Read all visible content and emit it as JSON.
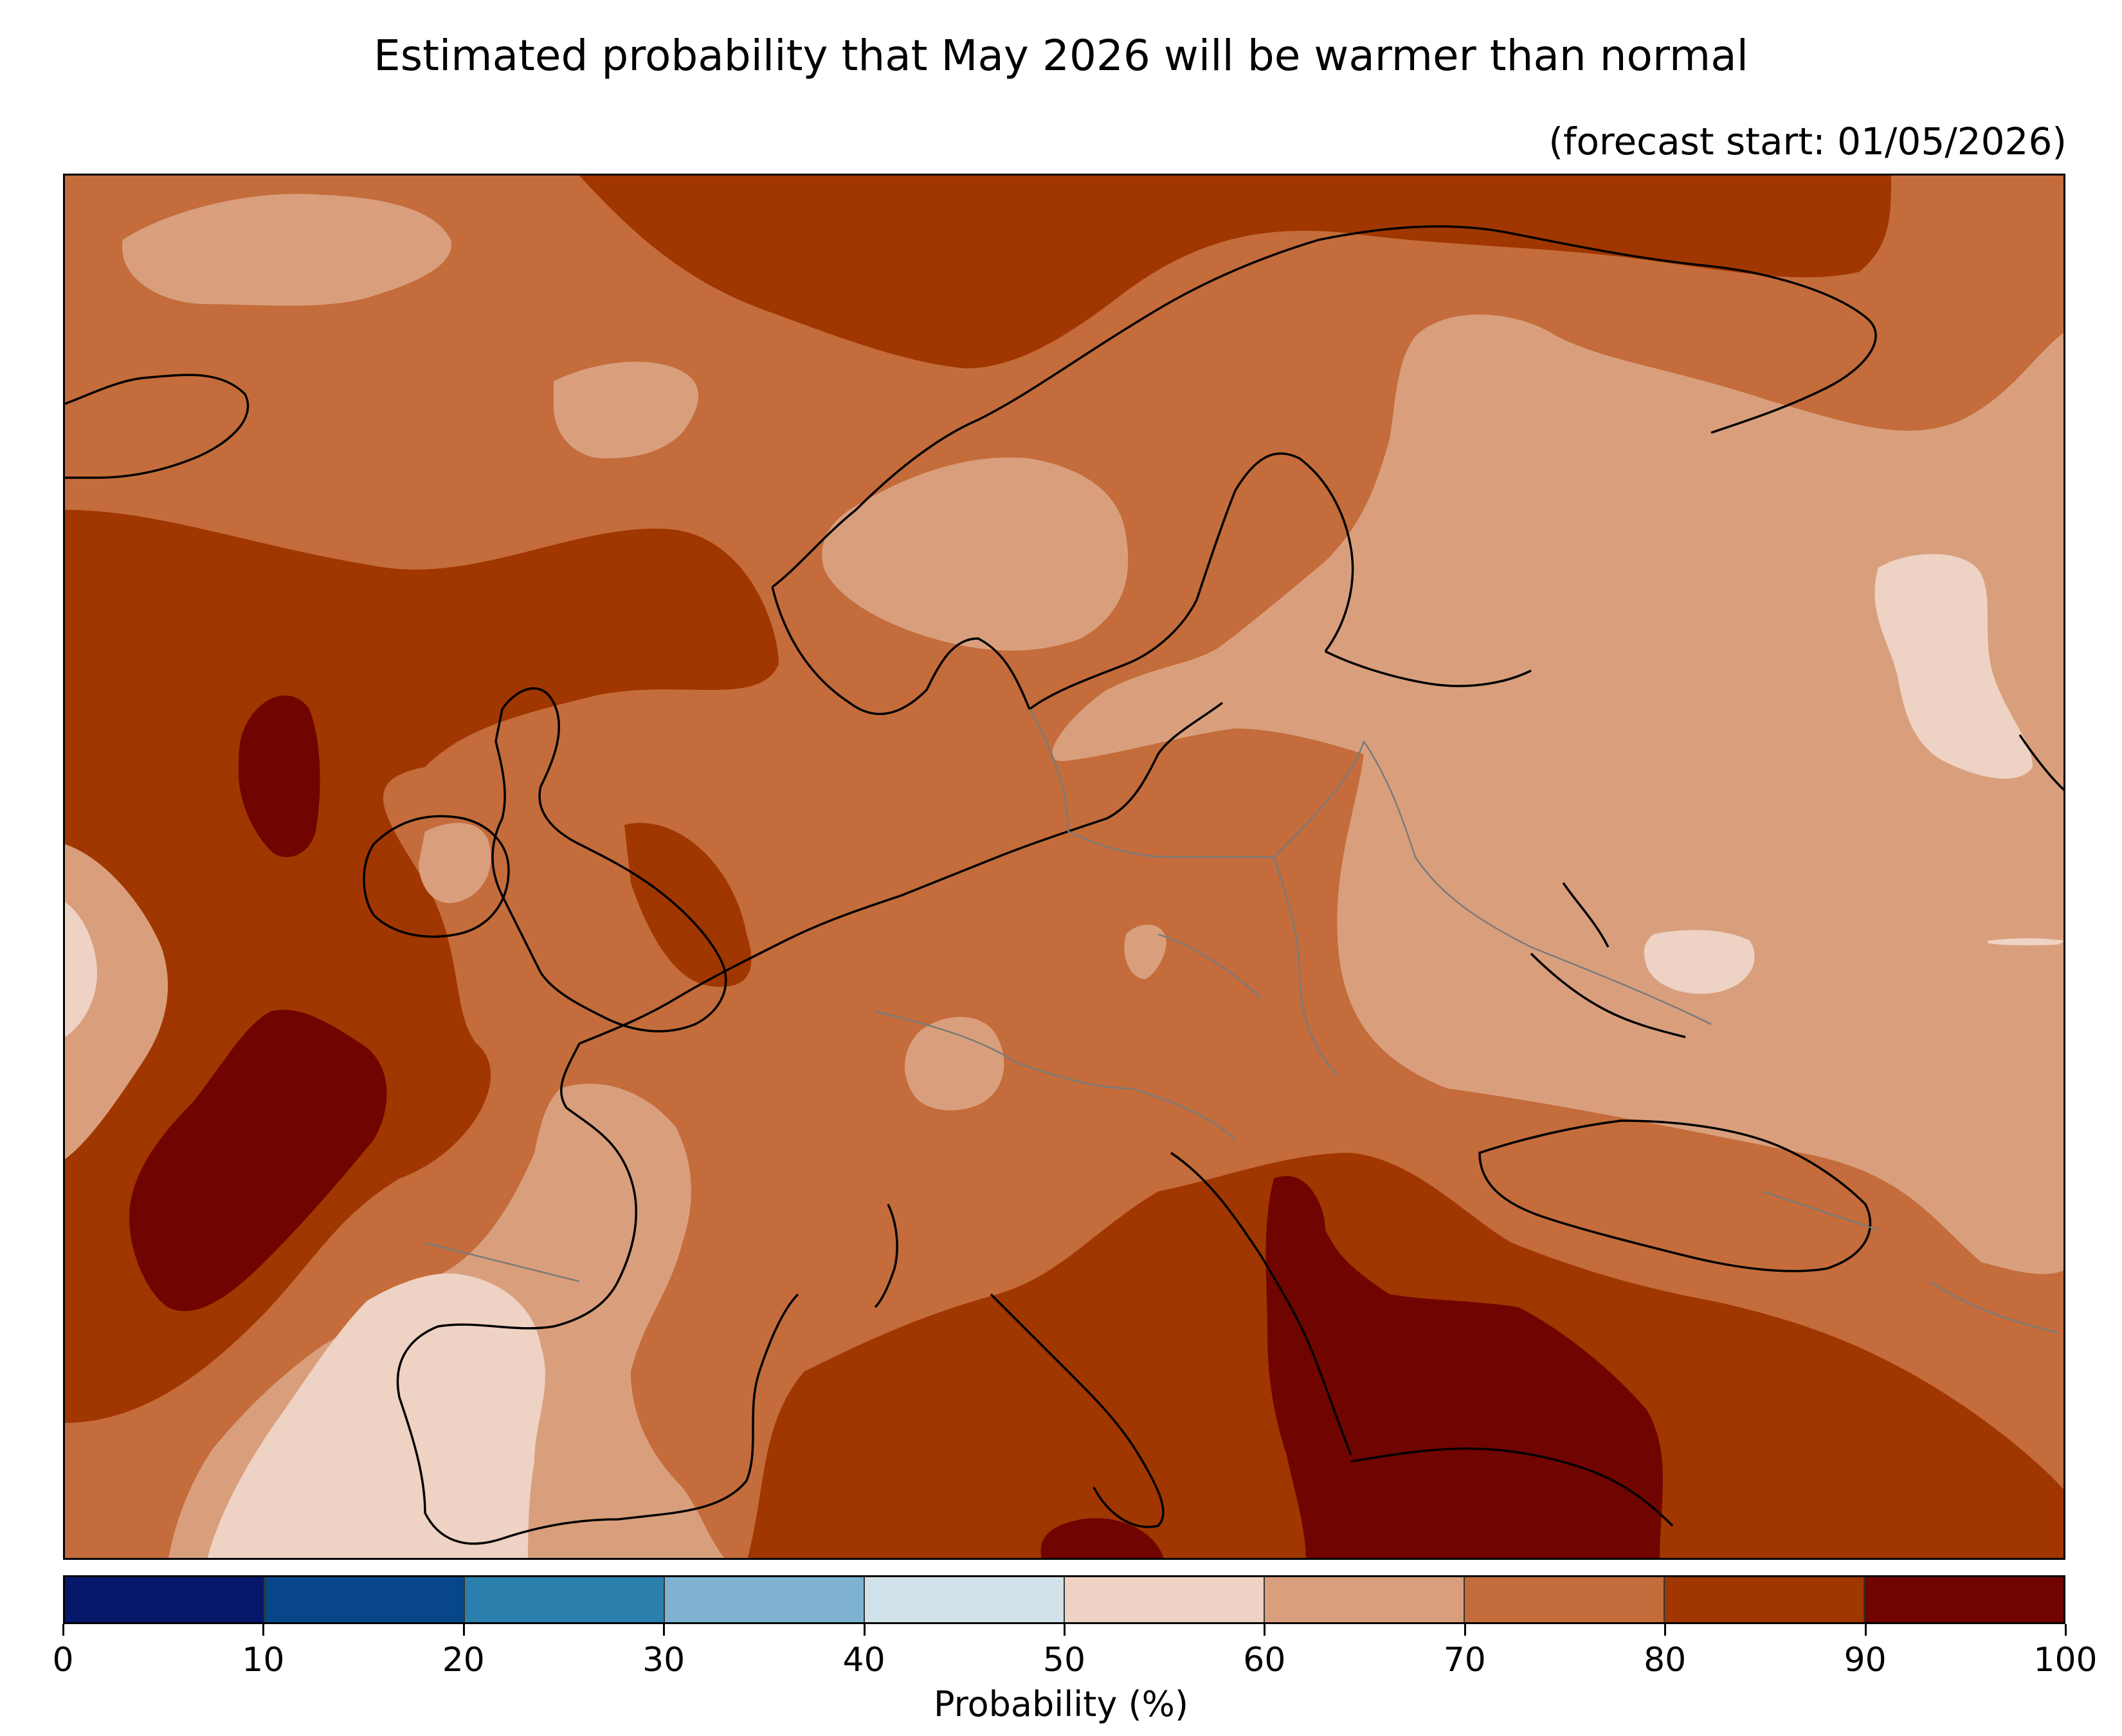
{
  "header": {
    "title": "Estimated probability that May 2026 will be warmer than normal",
    "subtitle": "(forecast start: 01/05/2026)"
  },
  "map": {
    "region": "Europe",
    "variable": "probability of above-normal temperature",
    "regions": [
      {
        "area": "Atlantic west of Iberia",
        "class_bin": "90-100"
      },
      {
        "area": "Atlantic west of Ireland",
        "class_bin": "90-100"
      },
      {
        "area": "Greece and Aegean",
        "class_bin": "90-100"
      },
      {
        "area": "Balkans and Italy",
        "class_bin": "80-90"
      },
      {
        "area": "Norwegian Sea / Arctic",
        "class_bin": "80-90"
      },
      {
        "area": "Central Europe",
        "class_bin": "70-80"
      },
      {
        "area": "Eastern Europe / western Russia",
        "class_bin": "60-70"
      },
      {
        "area": "Iberian Peninsula",
        "class_bin": "50-60"
      },
      {
        "area": "Central Russia",
        "class_bin": "50-60"
      }
    ]
  },
  "colorbar": {
    "label": "Probability (%)",
    "ticks": [
      "0",
      "10",
      "20",
      "30",
      "40",
      "50",
      "60",
      "70",
      "80",
      "90",
      "100"
    ],
    "bins": [
      {
        "range": "0-10",
        "color": "#07186b"
      },
      {
        "range": "10-20",
        "color": "#08468a"
      },
      {
        "range": "20-30",
        "color": "#2a7fad"
      },
      {
        "range": "30-40",
        "color": "#7fb2d0"
      },
      {
        "range": "40-50",
        "color": "#d1e2ea"
      },
      {
        "range": "50-60",
        "color": "#eed2c3"
      },
      {
        "range": "60-70",
        "color": "#d99f7d"
      },
      {
        "range": "70-80",
        "color": "#c46c3b"
      },
      {
        "range": "80-90",
        "color": "#a03600"
      },
      {
        "range": "90-100",
        "color": "#700400"
      }
    ]
  }
}
